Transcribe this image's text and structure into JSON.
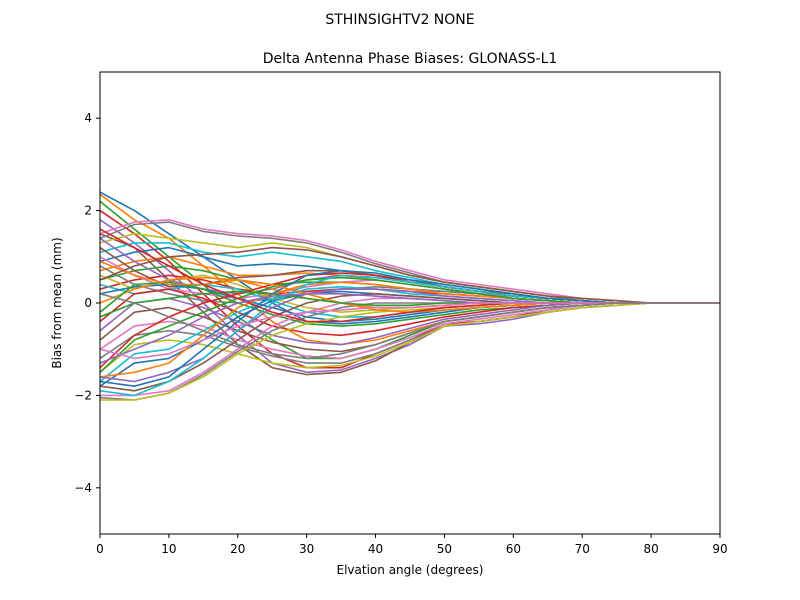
{
  "chart_data": {
    "type": "line",
    "suptitle": "STHINSIGHTV2    NONE",
    "title": "Delta Antenna Phase Biases: GLONASS-L1",
    "xlabel": "Elvation angle (degrees)",
    "ylabel": "Bias from mean (mm)",
    "xlim": [
      0,
      90
    ],
    "ylim": [
      -5,
      5
    ],
    "xticks": [
      0,
      10,
      20,
      30,
      40,
      50,
      60,
      70,
      80,
      90
    ],
    "yticks": [
      -4,
      -2,
      0,
      2,
      4
    ],
    "grid": false,
    "x": [
      0,
      5,
      10,
      15,
      20,
      25,
      30,
      35,
      40,
      45,
      50,
      55,
      60,
      65,
      70,
      75,
      80,
      85,
      90
    ],
    "colors": [
      "#1f77b4",
      "#ff7f0e",
      "#2ca02c",
      "#d62728",
      "#9467bd",
      "#8c564b",
      "#e377c2",
      "#7f7f7f",
      "#bcbd22",
      "#17becf"
    ],
    "series": [
      {
        "values": [
          2.4,
          2.0,
          1.5,
          1.0,
          0.5,
          0.0,
          -0.4,
          -0.45,
          -0.4,
          -0.3,
          -0.2,
          -0.1,
          -0.05,
          0.0,
          0.0,
          0.0,
          0.0,
          0.0,
          0.0
        ]
      },
      {
        "values": [
          2.35,
          1.8,
          1.4,
          0.8,
          0.2,
          -0.4,
          -0.8,
          -0.9,
          -0.8,
          -0.6,
          -0.4,
          -0.3,
          -0.2,
          -0.1,
          -0.05,
          0.0,
          0.0,
          0.0,
          0.0
        ]
      },
      {
        "values": [
          2.2,
          1.6,
          1.0,
          0.4,
          -0.3,
          -0.8,
          -1.2,
          -1.2,
          -1.0,
          -0.7,
          -0.4,
          -0.3,
          -0.2,
          -0.1,
          -0.05,
          0.0,
          0.0,
          0.0,
          0.0
        ]
      },
      {
        "values": [
          2.0,
          1.5,
          0.9,
          0.2,
          -0.5,
          -1.1,
          -1.4,
          -1.4,
          -1.1,
          -0.8,
          -0.45,
          -0.4,
          -0.3,
          -0.15,
          -0.05,
          0.0,
          0.0,
          0.0,
          0.0
        ]
      },
      {
        "values": [
          1.8,
          1.3,
          0.7,
          0.0,
          -0.7,
          -1.3,
          -1.5,
          -1.45,
          -1.2,
          -0.9,
          -0.5,
          -0.45,
          -0.35,
          -0.2,
          -0.1,
          -0.05,
          0.0,
          0.0,
          0.0
        ]
      },
      {
        "values": [
          1.5,
          1.2,
          0.5,
          -0.2,
          -0.9,
          -1.4,
          -1.55,
          -1.5,
          -1.25,
          -0.85,
          -0.5,
          -0.4,
          -0.3,
          -0.15,
          -0.05,
          0.0,
          0.0,
          0.0,
          0.0
        ]
      },
      {
        "values": [
          1.5,
          1.75,
          1.8,
          1.6,
          1.5,
          1.45,
          1.35,
          1.15,
          0.9,
          0.7,
          0.5,
          0.4,
          0.3,
          0.2,
          0.1,
          0.05,
          0.0,
          0.0,
          0.0
        ]
      },
      {
        "values": [
          1.4,
          1.7,
          1.75,
          1.55,
          1.45,
          1.4,
          1.3,
          1.1,
          0.85,
          0.65,
          0.45,
          0.35,
          0.25,
          0.15,
          0.05,
          0.0,
          0.0,
          0.0,
          0.0
        ]
      },
      {
        "values": [
          1.3,
          1.5,
          1.4,
          1.3,
          1.2,
          1.3,
          1.2,
          1.0,
          0.8,
          0.6,
          0.45,
          0.35,
          0.25,
          0.15,
          0.1,
          0.05,
          0.0,
          0.0,
          0.0
        ]
      },
      {
        "values": [
          1.1,
          1.3,
          1.3,
          1.1,
          1.0,
          1.1,
          1.0,
          0.9,
          0.7,
          0.55,
          0.4,
          0.3,
          0.2,
          0.1,
          0.05,
          0.0,
          0.0,
          0.0,
          0.0
        ]
      },
      {
        "values": [
          0.9,
          1.1,
          1.2,
          1.0,
          0.8,
          0.85,
          0.8,
          0.7,
          0.6,
          0.45,
          0.35,
          0.25,
          0.15,
          0.1,
          0.05,
          0.0,
          0.0,
          0.0,
          0.0
        ]
      },
      {
        "values": [
          0.7,
          0.9,
          1.0,
          0.8,
          0.6,
          0.6,
          0.65,
          0.6,
          0.5,
          0.4,
          0.3,
          0.2,
          0.15,
          0.1,
          0.05,
          0.0,
          0.0,
          0.0,
          0.0
        ]
      },
      {
        "values": [
          0.5,
          0.7,
          0.8,
          0.7,
          0.5,
          0.4,
          0.45,
          0.45,
          0.4,
          0.3,
          0.25,
          0.2,
          0.1,
          0.05,
          0.0,
          0.0,
          0.0,
          0.0,
          0.0
        ]
      },
      {
        "values": [
          0.3,
          0.5,
          0.6,
          0.5,
          0.3,
          0.2,
          0.25,
          0.3,
          0.3,
          0.25,
          0.2,
          0.15,
          0.1,
          0.05,
          0.0,
          0.0,
          0.0,
          0.0,
          0.0
        ]
      },
      {
        "values": [
          1.4,
          0.9,
          0.5,
          0.3,
          0.2,
          0.3,
          0.5,
          0.6,
          0.55,
          0.45,
          0.35,
          0.25,
          0.15,
          0.1,
          0.05,
          0.0,
          0.0,
          0.0,
          0.0
        ]
      },
      {
        "values": [
          1.2,
          0.7,
          0.35,
          0.4,
          0.55,
          0.6,
          0.7,
          0.7,
          0.6,
          0.5,
          0.35,
          0.25,
          0.2,
          0.1,
          0.05,
          0.0,
          0.0,
          0.0,
          0.0
        ]
      },
      {
        "values": [
          1.0,
          0.6,
          0.3,
          0.2,
          0.1,
          0.2,
          0.35,
          0.45,
          0.5,
          0.4,
          0.3,
          0.2,
          0.15,
          0.1,
          0.05,
          0.0,
          0.0,
          0.0,
          0.0
        ]
      },
      {
        "values": [
          0.8,
          0.4,
          0.2,
          0.05,
          0.0,
          0.1,
          0.2,
          0.3,
          0.35,
          0.3,
          0.25,
          0.2,
          0.1,
          0.05,
          0.0,
          0.0,
          0.0,
          0.0,
          0.0
        ]
      },
      {
        "values": [
          0.6,
          0.3,
          0.5,
          0.6,
          0.4,
          0.1,
          -0.1,
          -0.2,
          -0.15,
          -0.1,
          -0.05,
          0.0,
          0.0,
          0.0,
          0.0,
          0.0,
          0.0,
          0.0,
          0.0
        ]
      },
      {
        "values": [
          0.4,
          0.2,
          0.3,
          0.4,
          0.3,
          0.05,
          -0.2,
          -0.3,
          -0.3,
          -0.2,
          -0.1,
          -0.05,
          0.0,
          0.0,
          0.0,
          0.0,
          0.0,
          0.0,
          0.0
        ]
      },
      {
        "values": [
          0.2,
          0.35,
          0.4,
          0.3,
          0.1,
          -0.1,
          -0.3,
          -0.4,
          -0.35,
          -0.25,
          -0.15,
          -0.1,
          -0.05,
          0.0,
          0.0,
          0.0,
          0.0,
          0.0,
          0.0
        ]
      },
      {
        "values": [
          0.0,
          0.3,
          0.5,
          0.55,
          0.5,
          0.3,
          0.1,
          0.0,
          -0.1,
          -0.1,
          -0.05,
          0.0,
          0.0,
          0.0,
          0.0,
          0.0,
          0.0,
          0.0,
          0.0
        ]
      },
      {
        "values": [
          -0.2,
          0.4,
          0.45,
          0.3,
          0.0,
          -0.25,
          -0.45,
          -0.5,
          -0.45,
          -0.35,
          -0.25,
          -0.15,
          -0.1,
          -0.05,
          0.0,
          0.0,
          0.0,
          0.0,
          0.0
        ]
      },
      {
        "values": [
          -0.4,
          0.2,
          0.3,
          0.1,
          -0.2,
          -0.5,
          -0.65,
          -0.7,
          -0.6,
          -0.45,
          -0.3,
          -0.2,
          -0.1,
          -0.05,
          0.0,
          0.0,
          0.0,
          0.0,
          0.0
        ]
      },
      {
        "values": [
          -0.6,
          0.0,
          0.1,
          -0.1,
          -0.4,
          -0.7,
          -0.85,
          -0.9,
          -0.75,
          -0.55,
          -0.35,
          -0.25,
          -0.15,
          -0.05,
          0.0,
          0.0,
          0.0,
          0.0,
          0.0
        ]
      },
      {
        "values": [
          -0.8,
          -0.2,
          -0.1,
          -0.3,
          -0.6,
          -0.85,
          -1.0,
          -1.05,
          -0.9,
          -0.65,
          -0.4,
          -0.3,
          -0.2,
          -0.1,
          -0.05,
          0.0,
          0.0,
          0.0,
          0.0
        ]
      },
      {
        "values": [
          -1.0,
          -0.5,
          -0.4,
          -0.5,
          -0.8,
          -1.0,
          -1.15,
          -1.2,
          -1.0,
          -0.75,
          -0.45,
          -0.35,
          -0.25,
          -0.15,
          -0.05,
          0.0,
          0.0,
          0.0,
          0.0
        ]
      },
      {
        "values": [
          -1.2,
          -0.7,
          -0.6,
          -0.7,
          -0.95,
          -1.15,
          -1.3,
          -1.3,
          -1.1,
          -0.8,
          -0.5,
          -0.4,
          -0.3,
          -0.2,
          -0.1,
          -0.05,
          0.0,
          0.0,
          0.0
        ]
      },
      {
        "values": [
          -1.5,
          -0.9,
          -0.8,
          -0.9,
          -1.1,
          -1.3,
          -1.4,
          -1.35,
          -1.15,
          -0.85,
          -0.5,
          -0.4,
          -0.3,
          -0.2,
          -0.1,
          -0.05,
          0.0,
          0.0,
          0.0
        ]
      },
      {
        "values": [
          -1.7,
          -1.1,
          -1.0,
          -0.6,
          -0.2,
          0.1,
          0.3,
          0.35,
          0.3,
          0.2,
          0.15,
          0.1,
          0.05,
          0.0,
          0.0,
          0.0,
          0.0,
          0.0,
          0.0
        ]
      },
      {
        "values": [
          -1.8,
          -1.3,
          -1.2,
          -0.8,
          -0.3,
          0.05,
          0.2,
          0.25,
          0.2,
          0.15,
          0.1,
          0.05,
          0.0,
          0.0,
          0.0,
          0.0,
          0.0,
          0.0,
          0.0
        ]
      },
      {
        "values": [
          -1.6,
          -1.5,
          -1.3,
          -0.7,
          -0.1,
          0.2,
          0.4,
          0.45,
          0.4,
          0.3,
          0.2,
          0.15,
          0.1,
          0.05,
          0.0,
          0.0,
          0.0,
          0.0,
          0.0
        ]
      },
      {
        "values": [
          -1.5,
          -0.8,
          -0.5,
          -0.2,
          0.1,
          0.35,
          0.5,
          0.55,
          0.5,
          0.4,
          0.3,
          0.2,
          0.1,
          0.05,
          0.0,
          0.0,
          0.0,
          0.0,
          0.0
        ]
      },
      {
        "values": [
          -1.4,
          -0.7,
          -0.3,
          0.0,
          0.2,
          0.4,
          0.6,
          0.65,
          0.6,
          0.45,
          0.35,
          0.25,
          0.15,
          0.1,
          0.05,
          0.0,
          0.0,
          0.0,
          0.0
        ]
      },
      {
        "values": [
          -1.6,
          -1.7,
          -1.5,
          -1.2,
          -0.6,
          -0.1,
          0.2,
          0.3,
          0.3,
          0.25,
          0.15,
          0.1,
          0.05,
          0.0,
          0.0,
          0.0,
          0.0,
          0.0,
          0.0
        ]
      },
      {
        "values": [
          -1.8,
          -1.9,
          -1.7,
          -1.3,
          -0.8,
          -0.3,
          0.0,
          0.15,
          0.2,
          0.15,
          0.1,
          0.05,
          0.0,
          0.0,
          0.0,
          0.0,
          0.0,
          0.0,
          0.0
        ]
      },
      {
        "values": [
          -2.0,
          -2.0,
          -1.9,
          -1.5,
          -1.0,
          -0.5,
          -0.2,
          0.0,
          0.1,
          0.1,
          0.05,
          0.0,
          0.0,
          0.0,
          0.0,
          0.0,
          0.0,
          0.0,
          0.0
        ]
      },
      {
        "values": [
          -2.05,
          -2.1,
          -1.95,
          -1.55,
          -1.05,
          -0.6,
          -0.3,
          -0.1,
          0.0,
          0.0,
          0.0,
          0.0,
          0.0,
          0.0,
          0.0,
          0.0,
          0.0,
          0.0,
          0.0
        ]
      },
      {
        "values": [
          -2.1,
          -2.1,
          -1.95,
          -1.6,
          -1.1,
          -0.7,
          -0.45,
          -0.3,
          -0.2,
          -0.15,
          -0.1,
          -0.05,
          0.0,
          0.0,
          0.0,
          0.0,
          0.0,
          0.0,
          0.0
        ]
      },
      {
        "values": [
          -1.9,
          -2.0,
          -1.7,
          -1.2,
          -0.6,
          0.0,
          0.4,
          0.6,
          0.55,
          0.45,
          0.35,
          0.25,
          0.15,
          0.1,
          0.05,
          0.0,
          0.0,
          0.0,
          0.0
        ]
      },
      {
        "values": [
          -1.7,
          -1.8,
          -1.6,
          -1.0,
          -0.4,
          0.2,
          0.6,
          0.7,
          0.65,
          0.5,
          0.4,
          0.3,
          0.2,
          0.1,
          0.05,
          0.0,
          0.0,
          0.0,
          0.0
        ]
      },
      {
        "values": [
          0.9,
          0.6,
          0.4,
          0.4,
          0.5,
          0.4,
          0.2,
          0.0,
          -0.15,
          -0.2,
          -0.15,
          -0.1,
          -0.05,
          0.0,
          0.0,
          0.0,
          0.0,
          0.0,
          0.0
        ]
      },
      {
        "values": [
          -0.3,
          0.0,
          0.1,
          0.2,
          0.25,
          0.2,
          0.1,
          0.0,
          -0.05,
          -0.05,
          0.0,
          0.0,
          0.0,
          0.0,
          0.0,
          0.0,
          0.0,
          0.0,
          0.0
        ]
      },
      {
        "values": [
          1.6,
          1.2,
          0.8,
          0.4,
          0.1,
          -0.2,
          -0.4,
          -0.4,
          -0.3,
          -0.2,
          -0.1,
          -0.05,
          0.0,
          0.0,
          0.0,
          0.0,
          0.0,
          0.0,
          0.0
        ]
      },
      {
        "values": [
          -1.3,
          -1.0,
          -0.7,
          -0.3,
          0.0,
          0.15,
          0.2,
          0.2,
          0.15,
          0.1,
          0.05,
          0.0,
          0.0,
          0.0,
          0.0,
          0.0,
          0.0,
          0.0,
          0.0
        ]
      },
      {
        "values": [
          0.5,
          0.8,
          1.0,
          1.05,
          1.1,
          1.2,
          1.15,
          1.0,
          0.8,
          0.6,
          0.45,
          0.35,
          0.25,
          0.15,
          0.1,
          0.05,
          0.0,
          0.0,
          0.0
        ]
      },
      {
        "values": [
          -1.0,
          -1.2,
          -1.1,
          -0.8,
          -0.5,
          -0.3,
          -0.2,
          -0.15,
          -0.1,
          -0.1,
          -0.05,
          0.0,
          0.0,
          0.0,
          0.0,
          0.0,
          0.0,
          0.0,
          0.0
        ]
      },
      {
        "values": [
          0.2,
          0.0,
          -0.3,
          -0.6,
          -0.9,
          -1.1,
          -1.2,
          -1.1,
          -0.9,
          -0.65,
          -0.4,
          -0.3,
          -0.2,
          -0.1,
          -0.05,
          0.0,
          0.0,
          0.0,
          0.0
        ]
      }
    ]
  }
}
